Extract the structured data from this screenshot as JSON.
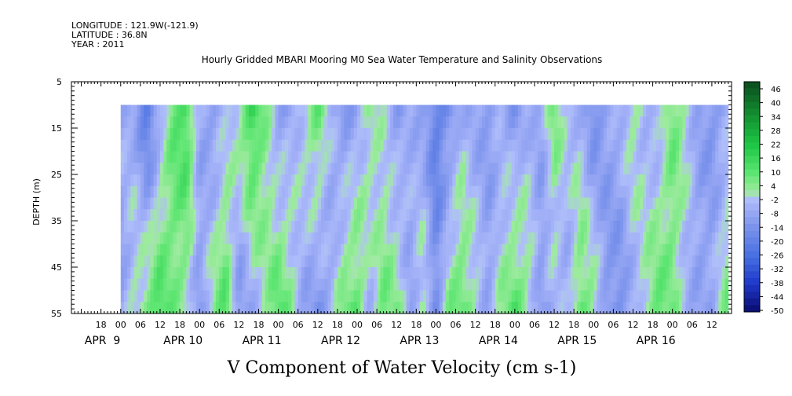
{
  "header": {
    "longitude": "LONGITUDE : 121.9W(-121.9)",
    "latitude": "LATITUDE : 36.8N",
    "year": "YEAR : 2011"
  },
  "chart_data": {
    "type": "heatmap",
    "title": "Hourly Gridded MBARI Mooring M0 Sea Water Temperature and Salinity Observations",
    "xlabel": "V Component of Water Velocity (cm s-1)",
    "ylabel": "DEPTH (m)",
    "ylim": [
      55,
      5
    ],
    "y_ticks": [
      "5",
      "15",
      "25",
      "35",
      "45",
      "55"
    ],
    "x_start_hours": -15,
    "x_end_hours": 186,
    "data_start_hours": 0,
    "data_end_hours": 185,
    "data_depth_range": [
      10,
      55
    ],
    "hour_ticks": [
      "18",
      "00",
      "06",
      "12",
      "18",
      "00",
      "06",
      "12",
      "18",
      "00",
      "06",
      "12",
      "18",
      "00",
      "06",
      "12",
      "18",
      "00",
      "06",
      "12",
      "18",
      "00",
      "06",
      "12",
      "18",
      "00",
      "06",
      "12",
      "18",
      "00",
      "06",
      "12"
    ],
    "hour_tick_offsets": [
      -6,
      0,
      6,
      12,
      18,
      24,
      30,
      36,
      42,
      48,
      54,
      60,
      66,
      72,
      78,
      84,
      90,
      96,
      102,
      108,
      114,
      120,
      126,
      132,
      138,
      144,
      150,
      156,
      162,
      168,
      174,
      180
    ],
    "day_labels": [
      "APR  9",
      "APR 10",
      "APR 11",
      "APR 12",
      "APR 13",
      "APR 14",
      "APR 15",
      "APR 16"
    ],
    "day_label_offsets": [
      0,
      24,
      48,
      72,
      96,
      120,
      144,
      168
    ],
    "colorbar": {
      "levels": [
        "46",
        "40",
        "34",
        "28",
        "22",
        "16",
        "10",
        "4",
        "-2",
        "-8",
        "-14",
        "-20",
        "-26",
        "-32",
        "-38",
        "-44",
        "-50"
      ],
      "min": -50,
      "max": 50
    },
    "column_profiles": [
      {
        "hour": 0,
        "top": -4,
        "bottom": -9
      },
      {
        "hour": 4,
        "top": -6,
        "bottom": 2
      },
      {
        "hour": 8,
        "top": -22,
        "bottom": 8
      },
      {
        "hour": 12,
        "top": -8,
        "bottom": 14
      },
      {
        "hour": 16,
        "top": 10,
        "bottom": 6
      },
      {
        "hour": 20,
        "top": 16,
        "bottom": 2
      },
      {
        "hour": 24,
        "top": -6,
        "bottom": -10
      },
      {
        "hour": 28,
        "top": -10,
        "bottom": 4
      },
      {
        "hour": 32,
        "top": -4,
        "bottom": 12
      },
      {
        "hour": 36,
        "top": 4,
        "bottom": -12
      },
      {
        "hour": 40,
        "top": 18,
        "bottom": -6
      },
      {
        "hour": 44,
        "top": 6,
        "bottom": 2
      },
      {
        "hour": 48,
        "top": -10,
        "bottom": 12
      },
      {
        "hour": 52,
        "top": -6,
        "bottom": 4
      },
      {
        "hour": 56,
        "top": 2,
        "bottom": -8
      },
      {
        "hour": 60,
        "top": 10,
        "bottom": -12
      },
      {
        "hour": 64,
        "top": -4,
        "bottom": -6
      },
      {
        "hour": 68,
        "top": -12,
        "bottom": 8
      },
      {
        "hour": 72,
        "top": -6,
        "bottom": 10
      },
      {
        "hour": 76,
        "top": 4,
        "bottom": -4
      },
      {
        "hour": 80,
        "top": -2,
        "bottom": 8
      },
      {
        "hour": 84,
        "top": -10,
        "bottom": 6
      },
      {
        "hour": 88,
        "top": -4,
        "bottom": -8
      },
      {
        "hour": 92,
        "top": -8,
        "bottom": 4
      },
      {
        "hour": 96,
        "top": -20,
        "bottom": -14
      },
      {
        "hour": 100,
        "top": -14,
        "bottom": 6
      },
      {
        "hour": 104,
        "top": -4,
        "bottom": 10
      },
      {
        "hour": 108,
        "top": -8,
        "bottom": 2
      },
      {
        "hour": 112,
        "top": -10,
        "bottom": -8
      },
      {
        "hour": 116,
        "top": -6,
        "bottom": 4
      },
      {
        "hour": 120,
        "top": -12,
        "bottom": 12
      },
      {
        "hour": 124,
        "top": -4,
        "bottom": 4
      },
      {
        "hour": 128,
        "top": -8,
        "bottom": -10
      },
      {
        "hour": 132,
        "top": 8,
        "bottom": -4
      },
      {
        "hour": 136,
        "top": -2,
        "bottom": -6
      },
      {
        "hour": 140,
        "top": -4,
        "bottom": 10
      },
      {
        "hour": 144,
        "top": -16,
        "bottom": 6
      },
      {
        "hour": 148,
        "top": -8,
        "bottom": -12
      },
      {
        "hour": 152,
        "top": -4,
        "bottom": -14
      },
      {
        "hour": 156,
        "top": 4,
        "bottom": -6
      },
      {
        "hour": 160,
        "top": -4,
        "bottom": 4
      },
      {
        "hour": 164,
        "top": -6,
        "bottom": 10
      },
      {
        "hour": 168,
        "top": 8,
        "bottom": 6
      },
      {
        "hour": 172,
        "top": 2,
        "bottom": -4
      },
      {
        "hour": 176,
        "top": -8,
        "bottom": -8
      },
      {
        "hour": 180,
        "top": -12,
        "bottom": -6
      },
      {
        "hour": 185,
        "top": -6,
        "bottom": 8
      }
    ]
  }
}
